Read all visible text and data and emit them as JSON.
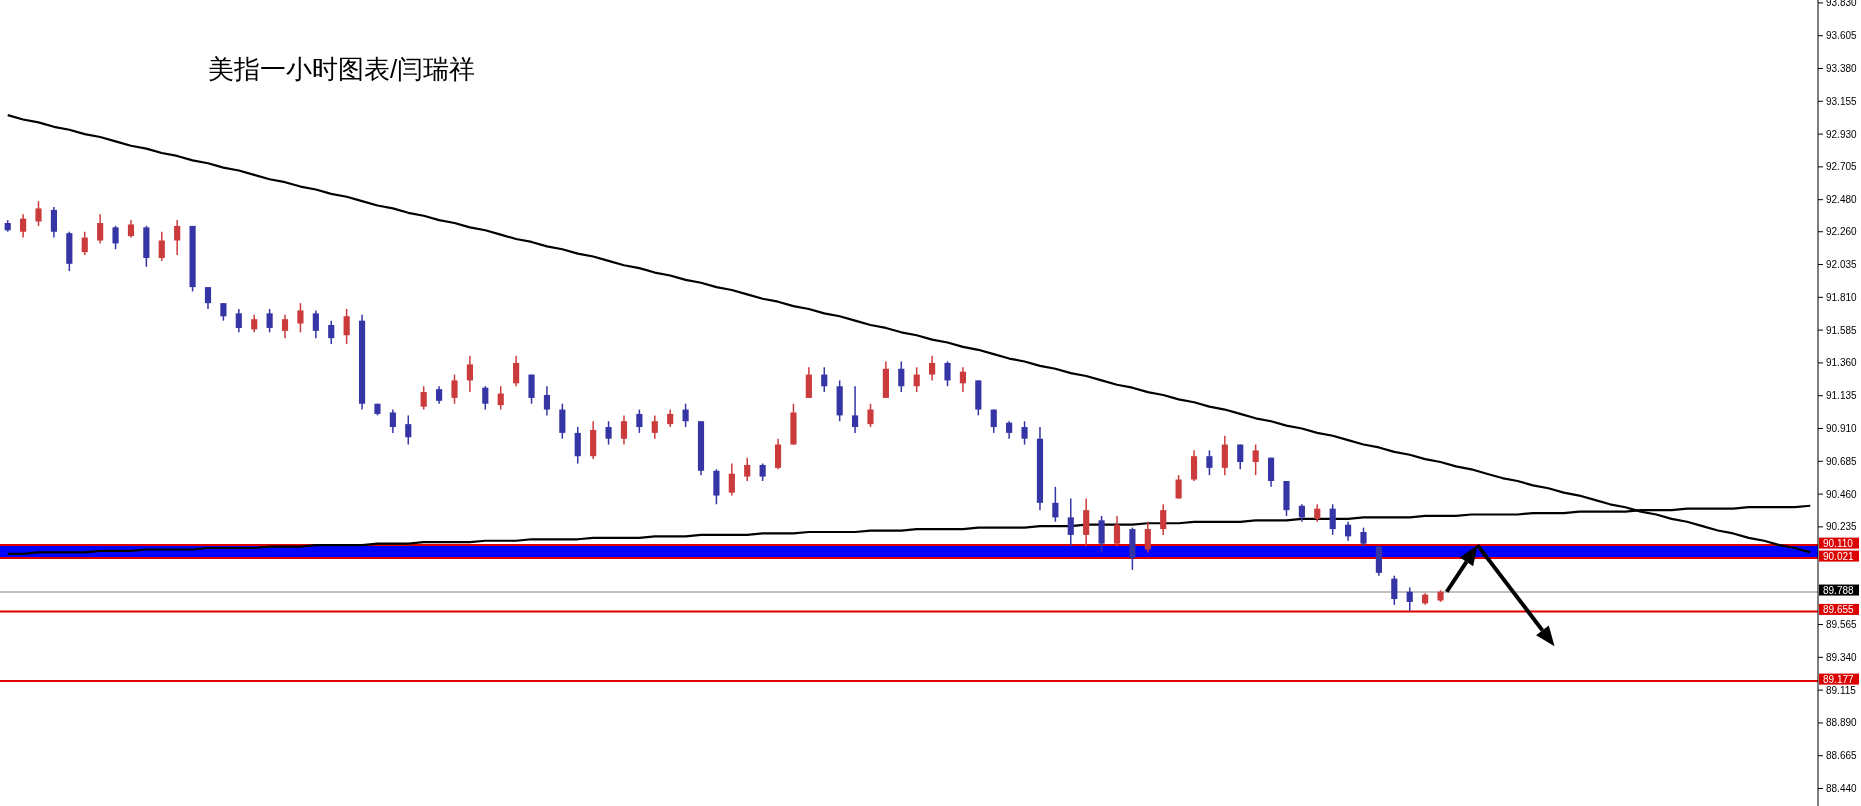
{
  "chart_data": {
    "type": "candlestick",
    "title": "美指一小时图表/闫瑞祥",
    "categories": [
      null,
      null,
      null,
      null,
      null,
      null,
      null,
      null,
      null,
      null,
      null,
      null,
      null,
      null,
      null,
      null,
      null,
      null,
      null,
      null,
      null,
      null,
      null,
      null,
      null,
      null,
      null,
      null,
      null,
      null,
      null,
      null,
      null,
      null,
      null,
      null,
      null,
      null,
      null,
      null,
      null,
      null,
      null,
      null,
      null,
      null,
      null,
      null,
      null,
      null,
      null,
      null,
      null,
      null,
      null,
      null,
      null,
      null,
      null,
      null,
      null,
      null,
      null,
      null,
      null,
      null,
      null,
      null,
      null,
      null,
      null,
      null,
      null,
      null,
      null,
      null,
      null,
      null,
      null,
      null,
      null,
      null,
      null,
      null,
      null,
      null,
      null,
      null,
      null,
      null,
      null,
      null,
      null,
      null,
      null,
      null,
      null,
      null,
      null,
      null,
      null,
      null,
      null,
      null,
      null,
      null,
      null,
      null,
      null,
      null,
      null,
      null,
      null,
      null,
      null,
      null,
      null,
      null
    ],
    "ohlc": [
      [
        92.32,
        92.34,
        92.26,
        92.27
      ],
      [
        92.26,
        92.38,
        92.22,
        92.35
      ],
      [
        92.33,
        92.47,
        92.3,
        92.42
      ],
      [
        92.41,
        92.43,
        92.22,
        92.26
      ],
      [
        92.25,
        92.26,
        91.99,
        92.04
      ],
      [
        92.12,
        92.26,
        92.1,
        92.22
      ],
      [
        92.2,
        92.38,
        92.18,
        92.32
      ],
      [
        92.29,
        92.3,
        92.14,
        92.18
      ],
      [
        92.23,
        92.34,
        92.22,
        92.31
      ],
      [
        92.29,
        92.3,
        92.02,
        92.08
      ],
      [
        92.08,
        92.26,
        92.06,
        92.2
      ],
      [
        92.2,
        92.34,
        92.1,
        92.3
      ],
      [
        92.3,
        92.3,
        91.85,
        91.88
      ],
      [
        91.88,
        91.88,
        91.73,
        91.77
      ],
      [
        91.77,
        91.77,
        91.65,
        91.68
      ],
      [
        91.7,
        91.73,
        91.57,
        91.6
      ],
      [
        91.59,
        91.69,
        91.57,
        91.66
      ],
      [
        91.7,
        91.73,
        91.57,
        91.6
      ],
      [
        91.58,
        91.69,
        91.53,
        91.66
      ],
      [
        91.63,
        91.77,
        91.57,
        91.72
      ],
      [
        91.7,
        91.72,
        91.53,
        91.58
      ],
      [
        91.62,
        91.65,
        91.49,
        91.53
      ],
      [
        91.55,
        91.73,
        91.49,
        91.68
      ],
      [
        91.65,
        91.69,
        91.04,
        91.08
      ],
      [
        91.08,
        91.08,
        91.0,
        91.01
      ],
      [
        91.02,
        91.04,
        90.88,
        90.92
      ],
      [
        90.94,
        91.0,
        90.8,
        90.85
      ],
      [
        91.06,
        91.2,
        91.04,
        91.16
      ],
      [
        91.18,
        91.2,
        91.08,
        91.1
      ],
      [
        91.12,
        91.28,
        91.08,
        91.24
      ],
      [
        91.24,
        91.41,
        91.16,
        91.35
      ],
      [
        91.19,
        91.2,
        91.04,
        91.08
      ],
      [
        91.07,
        91.2,
        91.04,
        91.15
      ],
      [
        91.22,
        91.41,
        91.2,
        91.36
      ],
      [
        91.28,
        91.28,
        91.08,
        91.12
      ],
      [
        91.14,
        91.2,
        91.0,
        91.04
      ],
      [
        91.04,
        91.08,
        90.84,
        90.88
      ],
      [
        90.88,
        90.92,
        90.67,
        90.72
      ],
      [
        90.72,
        90.96,
        90.7,
        90.9
      ],
      [
        90.92,
        90.96,
        90.8,
        90.84
      ],
      [
        90.84,
        91.0,
        90.8,
        90.96
      ],
      [
        91.01,
        91.04,
        90.88,
        90.92
      ],
      [
        90.88,
        91.0,
        90.84,
        90.96
      ],
      [
        90.94,
        91.04,
        90.92,
        91.01
      ],
      [
        91.04,
        91.08,
        90.92,
        90.96
      ],
      [
        90.96,
        90.96,
        90.59,
        90.62
      ],
      [
        90.62,
        90.63,
        90.39,
        90.45
      ],
      [
        90.47,
        90.67,
        90.45,
        90.6
      ],
      [
        90.58,
        90.71,
        90.55,
        90.66
      ],
      [
        90.66,
        90.67,
        90.55,
        90.58
      ],
      [
        90.64,
        90.84,
        90.63,
        90.8
      ],
      [
        90.8,
        91.08,
        90.8,
        91.02
      ],
      [
        91.12,
        91.33,
        91.12,
        91.28
      ],
      [
        91.28,
        91.33,
        91.16,
        91.2
      ],
      [
        91.2,
        91.24,
        90.96,
        91.0
      ],
      [
        91.0,
        91.2,
        90.88,
        90.92
      ],
      [
        90.94,
        91.08,
        90.92,
        91.04
      ],
      [
        91.12,
        91.37,
        91.12,
        91.32
      ],
      [
        91.32,
        91.37,
        91.16,
        91.2
      ],
      [
        91.2,
        91.33,
        91.16,
        91.28
      ],
      [
        91.28,
        91.41,
        91.24,
        91.36
      ],
      [
        91.36,
        91.37,
        91.2,
        91.24
      ],
      [
        91.22,
        91.33,
        91.16,
        91.3
      ],
      [
        91.24,
        91.24,
        91.0,
        91.04
      ],
      [
        91.04,
        91.04,
        90.88,
        90.92
      ],
      [
        90.95,
        90.96,
        90.84,
        90.88
      ],
      [
        90.92,
        90.96,
        90.8,
        90.84
      ],
      [
        90.84,
        90.92,
        90.35,
        90.4
      ],
      [
        90.4,
        90.51,
        90.27,
        90.3
      ],
      [
        90.3,
        90.43,
        90.1,
        90.18
      ],
      [
        90.18,
        90.43,
        90.1,
        90.35
      ],
      [
        90.28,
        90.31,
        90.06,
        90.12
      ],
      [
        90.12,
        90.31,
        90.1,
        90.25
      ],
      [
        90.22,
        90.23,
        89.94,
        90.02
      ],
      [
        90.08,
        90.27,
        90.06,
        90.22
      ],
      [
        90.22,
        90.39,
        90.18,
        90.35
      ],
      [
        90.43,
        90.59,
        90.43,
        90.56
      ],
      [
        90.56,
        90.76,
        90.55,
        90.72
      ],
      [
        90.72,
        90.76,
        90.59,
        90.64
      ],
      [
        90.64,
        90.86,
        90.59,
        90.8
      ],
      [
        90.8,
        90.8,
        90.63,
        90.68
      ],
      [
        90.68,
        90.8,
        90.59,
        90.76
      ],
      [
        90.71,
        90.71,
        90.51,
        90.55
      ],
      [
        90.55,
        90.55,
        90.31,
        90.35
      ],
      [
        90.38,
        90.39,
        90.27,
        90.3
      ],
      [
        90.29,
        90.39,
        90.27,
        90.36
      ],
      [
        90.36,
        90.39,
        90.18,
        90.22
      ],
      [
        90.25,
        90.27,
        90.14,
        90.17
      ],
      [
        90.2,
        90.23,
        90.1,
        90.12
      ],
      [
        90.1,
        90.1,
        89.9,
        89.92
      ],
      [
        89.88,
        89.9,
        89.7,
        89.74
      ],
      [
        89.79,
        89.82,
        89.66,
        89.72
      ],
      [
        89.71,
        89.78,
        89.7,
        89.77
      ],
      [
        89.73,
        89.8,
        89.72,
        89.79
      ],
      null,
      null,
      null,
      null,
      null,
      null,
      null,
      null,
      null,
      null,
      null,
      null,
      null,
      null,
      null,
      null,
      null,
      null,
      null,
      null,
      null,
      null,
      null,
      null
    ],
    "colors": [
      "#3535a5",
      "#cc3b3b",
      "#cc3b3b",
      "#3535a5",
      "#3535a5",
      "#cc3b3b",
      "#cc3b3b",
      "#3535a5",
      "#cc3b3b",
      "#3535a5",
      "#cc3b3b",
      "#cc3b3b",
      "#3535a5",
      "#3535a5",
      "#3535a5",
      "#3535a5",
      "#cc3b3b",
      "#3535a5",
      "#cc3b3b",
      "#cc3b3b",
      "#3535a5",
      "#3535a5",
      "#cc3b3b",
      "#3535a5",
      "#3535a5",
      "#3535a5",
      "#3535a5",
      "#cc3b3b",
      "#3535a5",
      "#cc3b3b",
      "#cc3b3b",
      "#3535a5",
      "#cc3b3b",
      "#cc3b3b",
      "#3535a5",
      "#3535a5",
      "#3535a5",
      "#3535a5",
      "#cc3b3b",
      "#3535a5",
      "#cc3b3b",
      "#3535a5",
      "#cc3b3b",
      "#cc3b3b",
      "#3535a5",
      "#3535a5",
      "#3535a5",
      "#cc3b3b",
      "#cc3b3b",
      "#3535a5",
      "#cc3b3b",
      "#cc3b3b",
      "#cc3b3b",
      "#3535a5",
      "#3535a5",
      "#3535a5",
      "#cc3b3b",
      "#cc3b3b",
      "#3535a5",
      "#cc3b3b",
      "#cc3b3b",
      "#3535a5",
      "#cc3b3b",
      "#3535a5",
      "#3535a5",
      "#3535a5",
      "#3535a5",
      "#3535a5",
      "#3535a5",
      "#3535a5",
      "#cc3b3b",
      "#3535a5",
      "#cc3b3b",
      "#3535a5",
      "#cc3b3b",
      "#cc3b3b",
      "#cc3b3b",
      "#cc3b3b",
      "#3535a5",
      "#cc3b3b",
      "#3535a5",
      "#cc3b3b",
      "#3535a5",
      "#3535a5",
      "#3535a5",
      "#cc3b3b",
      "#3535a5",
      "#3535a5",
      "#3535a5",
      "#3535a5",
      "#3535a5",
      "#3535a5",
      "#cc3b3b",
      "#cc3b3b",
      null,
      null,
      null,
      null,
      null,
      null,
      null,
      null,
      null,
      null,
      null,
      null,
      null,
      null,
      null,
      null,
      null,
      null,
      null,
      null,
      null,
      null,
      null,
      null
    ],
    "series": [
      {
        "type": "line",
        "color": "#000000",
        "values": [
          93.06,
          93.03,
          93.01,
          92.98,
          92.96,
          92.93,
          92.91,
          92.88,
          92.85,
          92.83,
          92.8,
          92.78,
          92.75,
          92.73,
          92.7,
          92.68,
          92.65,
          92.62,
          92.6,
          92.57,
          92.55,
          92.52,
          92.5,
          92.47,
          92.44,
          92.42,
          92.39,
          92.37,
          92.34,
          92.32,
          92.29,
          92.27,
          92.24,
          92.21,
          92.19,
          92.16,
          92.14,
          92.11,
          92.09,
          92.06,
          92.03,
          92.01,
          91.98,
          91.96,
          91.93,
          91.91,
          91.88,
          91.86,
          91.83,
          91.8,
          91.78,
          91.75,
          91.73,
          91.7,
          91.68,
          91.65,
          91.62,
          91.6,
          91.57,
          91.55,
          91.52,
          91.5,
          91.47,
          91.45,
          91.42,
          91.39,
          91.37,
          91.34,
          91.32,
          91.29,
          91.27,
          91.24,
          91.21,
          91.19,
          91.16,
          91.14,
          91.11,
          91.09,
          91.06,
          91.04,
          91.01,
          90.98,
          90.96,
          90.93,
          90.91,
          90.88,
          90.86,
          90.83,
          90.8,
          90.78,
          90.75,
          90.73,
          90.7,
          90.68,
          90.65,
          90.63,
          90.6,
          90.57,
          90.55,
          90.52,
          90.5,
          90.47,
          90.45,
          90.42,
          90.39,
          90.37,
          90.34,
          90.32,
          90.29,
          90.27,
          90.24,
          90.21,
          90.19,
          90.16,
          90.14,
          90.11,
          90.09,
          90.06
        ]
      },
      {
        "type": "line",
        "color": "#000000",
        "values": [
          90.05,
          90.05,
          90.06,
          90.06,
          90.06,
          90.06,
          90.07,
          90.07,
          90.07,
          90.08,
          90.08,
          90.08,
          90.08,
          90.09,
          90.09,
          90.09,
          90.09,
          90.1,
          90.1,
          90.1,
          90.11,
          90.11,
          90.11,
          90.11,
          90.12,
          90.12,
          90.12,
          90.13,
          90.13,
          90.13,
          90.13,
          90.14,
          90.14,
          90.14,
          90.15,
          90.15,
          90.15,
          90.15,
          90.16,
          90.16,
          90.16,
          90.16,
          90.17,
          90.17,
          90.17,
          90.18,
          90.18,
          90.18,
          90.18,
          90.19,
          90.19,
          90.19,
          90.2,
          90.2,
          90.2,
          90.2,
          90.21,
          90.21,
          90.21,
          90.22,
          90.22,
          90.22,
          90.22,
          90.23,
          90.23,
          90.23,
          90.23,
          90.24,
          90.24,
          90.24,
          90.25,
          90.25,
          90.25,
          90.25,
          90.26,
          90.26,
          90.26,
          90.27,
          90.27,
          90.27,
          90.27,
          90.28,
          90.28,
          90.28,
          90.29,
          90.29,
          90.29,
          90.29,
          90.3,
          90.3,
          90.3,
          90.3,
          90.31,
          90.31,
          90.31,
          90.32,
          90.32,
          90.32,
          90.32,
          90.33,
          90.33,
          90.33,
          90.34,
          90.34,
          90.34,
          90.34,
          90.35,
          90.35,
          90.35,
          90.36,
          90.36,
          90.36,
          90.36,
          90.37,
          90.37,
          90.37,
          90.37,
          90.38
        ]
      }
    ],
    "ylim": [
      88.32,
      93.85
    ],
    "yticks": [
      {
        "value": 93.83,
        "label": "93.830"
      },
      {
        "value": 93.605,
        "label": "93.605"
      },
      {
        "value": 93.38,
        "label": "93.380"
      },
      {
        "value": 93.155,
        "label": "93.155"
      },
      {
        "value": 92.93,
        "label": "92.930"
      },
      {
        "value": 92.705,
        "label": "92.705"
      },
      {
        "value": 92.48,
        "label": "92.480"
      },
      {
        "value": 92.26,
        "label": "92.260"
      },
      {
        "value": 92.035,
        "label": "92.035"
      },
      {
        "value": 91.81,
        "label": "91.810"
      },
      {
        "value": 91.585,
        "label": "91.585"
      },
      {
        "value": 91.36,
        "label": "91.360"
      },
      {
        "value": 91.135,
        "label": "91.135"
      },
      {
        "value": 90.91,
        "label": "90.910"
      },
      {
        "value": 90.685,
        "label": "90.685"
      },
      {
        "value": 90.46,
        "label": "90.460"
      },
      {
        "value": 90.235,
        "label": "90.235"
      },
      {
        "value": 89.565,
        "label": "89.565"
      },
      {
        "value": 89.34,
        "label": "89.340"
      },
      {
        "value": 89.115,
        "label": "89.115"
      },
      {
        "value": 88.89,
        "label": "88.890"
      },
      {
        "value": 88.665,
        "label": "88.665"
      },
      {
        "value": 88.44,
        "label": "88.440"
      }
    ],
    "tick_labels": "y",
    "bands": [
      {
        "axis": "y",
        "from": 90.021,
        "to": 90.11,
        "color": "#0000ff"
      }
    ],
    "ref_lines": [
      {
        "axis": "y",
        "value": 90.11,
        "label": "90.110",
        "color": "#dd0000"
      },
      {
        "axis": "y",
        "value": 90.021,
        "label": "90.021",
        "color": "#dd0000"
      },
      {
        "axis": "y",
        "value": 89.788,
        "label": "89.788",
        "color": "#c0c0c0"
      },
      {
        "axis": "y",
        "value": 89.655,
        "label": "89.655",
        "color": "#dd0000"
      },
      {
        "axis": "y",
        "value": 89.177,
        "label": "89.177",
        "color": "#dd0000"
      }
    ]
  }
}
